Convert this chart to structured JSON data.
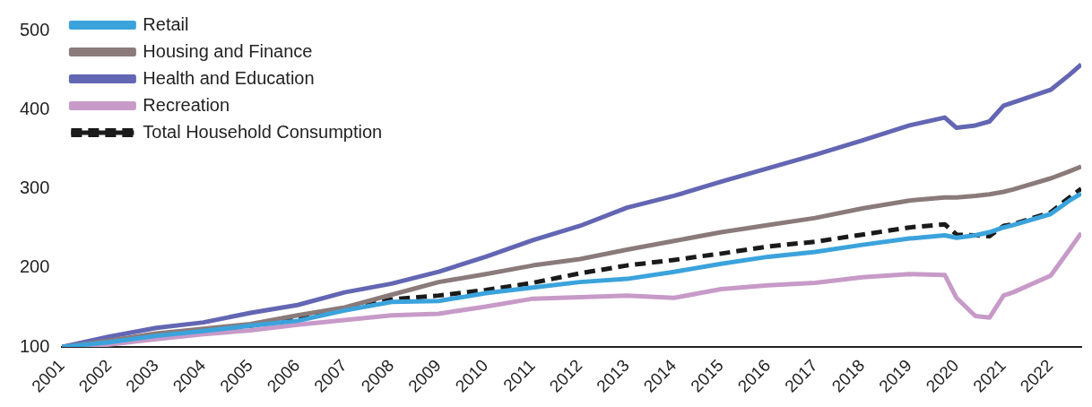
{
  "chart_data": {
    "type": "line",
    "xlim": [
      2001,
      2022.65
    ],
    "xticks": [
      2001,
      2002,
      2003,
      2004,
      2005,
      2006,
      2007,
      2008,
      2009,
      2010,
      2011,
      2012,
      2013,
      2014,
      2015,
      2016,
      2017,
      2018,
      2019,
      2020,
      2021,
      2022
    ],
    "ylim": [
      100,
      500
    ],
    "yticks": [
      100,
      200,
      300,
      400,
      500
    ],
    "grid": false,
    "legend": "top left",
    "marker": "none",
    "x": [
      2001,
      2002,
      2003,
      2004,
      2005,
      2006,
      2007,
      2008,
      2009,
      2010,
      2011,
      2012,
      2013,
      2014,
      2015,
      2016,
      2017,
      2018,
      2019,
      2019.75,
      2020,
      2020.4,
      2020.7,
      2021,
      2021.2,
      2022,
      2022.4,
      2022.65
    ],
    "series": [
      {
        "name": "Retail",
        "color": "#3ba3dc",
        "values": [
          100,
          106,
          114,
          120,
          127,
          133,
          146,
          157,
          158,
          168,
          175,
          182,
          186,
          195,
          205,
          214,
          220,
          229,
          237,
          241,
          238,
          241,
          245,
          251,
          254,
          268,
          285,
          294
        ]
      },
      {
        "name": "Housing and Finance",
        "color": "#8a7a7a",
        "values": [
          100,
          108,
          117,
          123,
          129,
          140,
          150,
          166,
          182,
          192,
          203,
          211,
          223,
          234,
          245,
          254,
          263,
          275,
          285,
          289,
          289,
          291,
          293,
          296,
          299,
          313,
          322,
          328
        ]
      },
      {
        "name": "Health and Education",
        "color": "#6366b3",
        "values": [
          100,
          113,
          124,
          131,
          143,
          153,
          169,
          180,
          195,
          214,
          235,
          253,
          276,
          291,
          309,
          326,
          343,
          361,
          380,
          390,
          377,
          380,
          385,
          405,
          409,
          425,
          444,
          457
        ]
      },
      {
        "name": "Recreation",
        "color": "#c79ac8",
        "values": [
          100,
          103,
          110,
          116,
          121,
          128,
          134,
          140,
          142,
          151,
          161,
          163,
          165,
          162,
          173,
          178,
          181,
          188,
          192,
          191,
          162,
          139,
          137,
          165,
          169,
          190,
          223,
          244
        ]
      },
      {
        "name": "Total Household Consumption",
        "color": "#1a1a1a",
        "line_style": "dashed",
        "values": [
          100,
          105,
          112,
          119,
          127,
          135,
          147,
          160,
          165,
          172,
          181,
          193,
          203,
          210,
          218,
          227,
          233,
          242,
          251,
          255,
          242,
          241,
          240,
          253,
          255,
          270,
          289,
          300
        ]
      }
    ]
  }
}
